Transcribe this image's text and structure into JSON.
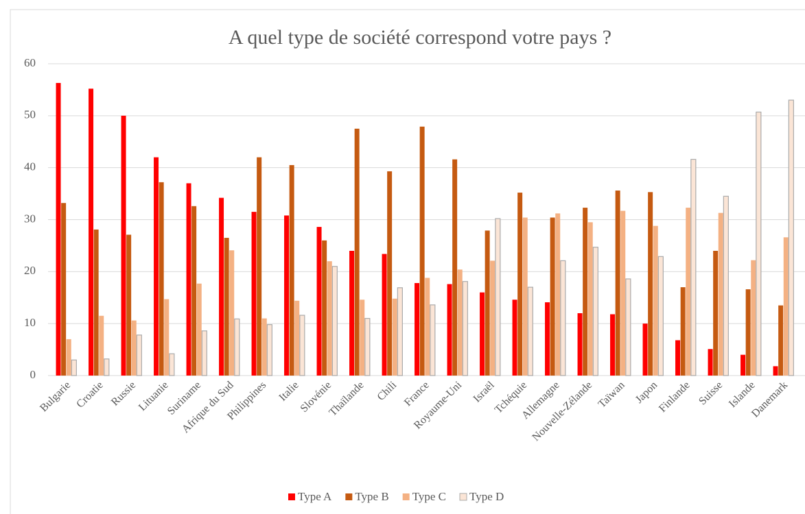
{
  "chart_data": {
    "type": "bar",
    "title": "A quel type de société correspond votre pays ?",
    "categories": [
      "Bulgarie",
      "Croatie",
      "Russie",
      "Lituanie",
      "Suriname",
      "Afrique du Sud",
      "Philippines",
      "Italie",
      "Slovénie",
      "Thaïlande",
      "Chili",
      "France",
      "Royaume-Uni",
      "Israël",
      "Tchéquie",
      "Allemagne",
      "Nouvelle-Zélande",
      "Taïwan",
      "Japon",
      "Finlande",
      "Suisse",
      "Islande",
      "Danemark"
    ],
    "series": [
      {
        "name": "Type A",
        "color": "#ff0000",
        "values": [
          56.3,
          55.2,
          50,
          42,
          37,
          34.2,
          31.5,
          30.8,
          28.6,
          24,
          23.4,
          17.8,
          17.6,
          16,
          14.6,
          14.1,
          12,
          11.8,
          10,
          6.8,
          5.1,
          4,
          1.8
        ]
      },
      {
        "name": "Type B",
        "color": "#c55a11",
        "values": [
          33.2,
          28.1,
          27.1,
          37.2,
          32.6,
          26.5,
          42,
          40.5,
          26,
          47.5,
          39.3,
          47.9,
          41.6,
          27.9,
          35.2,
          30.4,
          32.3,
          35.6,
          35.3,
          17,
          24,
          16.6,
          13.5
        ]
      },
      {
        "name": "Type C",
        "color": "#f4b183",
        "values": [
          7,
          11.5,
          10.6,
          14.7,
          17.7,
          24.1,
          11,
          14.4,
          22,
          14.6,
          14.8,
          18.8,
          20.4,
          22.1,
          30.4,
          31.2,
          29.5,
          31.7,
          28.8,
          32.3,
          31.3,
          22.2,
          26.6
        ]
      },
      {
        "name": "Type D",
        "color": "#fbe5d6",
        "values": [
          3,
          3.2,
          7.8,
          4.2,
          8.6,
          10.9,
          9.8,
          11.6,
          21,
          11,
          16.9,
          13.6,
          18.1,
          30.2,
          17,
          22.1,
          24.7,
          18.6,
          22.9,
          41.6,
          34.5,
          50.7,
          53
        ]
      }
    ],
    "ylim": [
      0,
      60
    ],
    "yticks": [
      0,
      10,
      20,
      30,
      40,
      50,
      60
    ],
    "grid": true,
    "legend": "bottom"
  }
}
